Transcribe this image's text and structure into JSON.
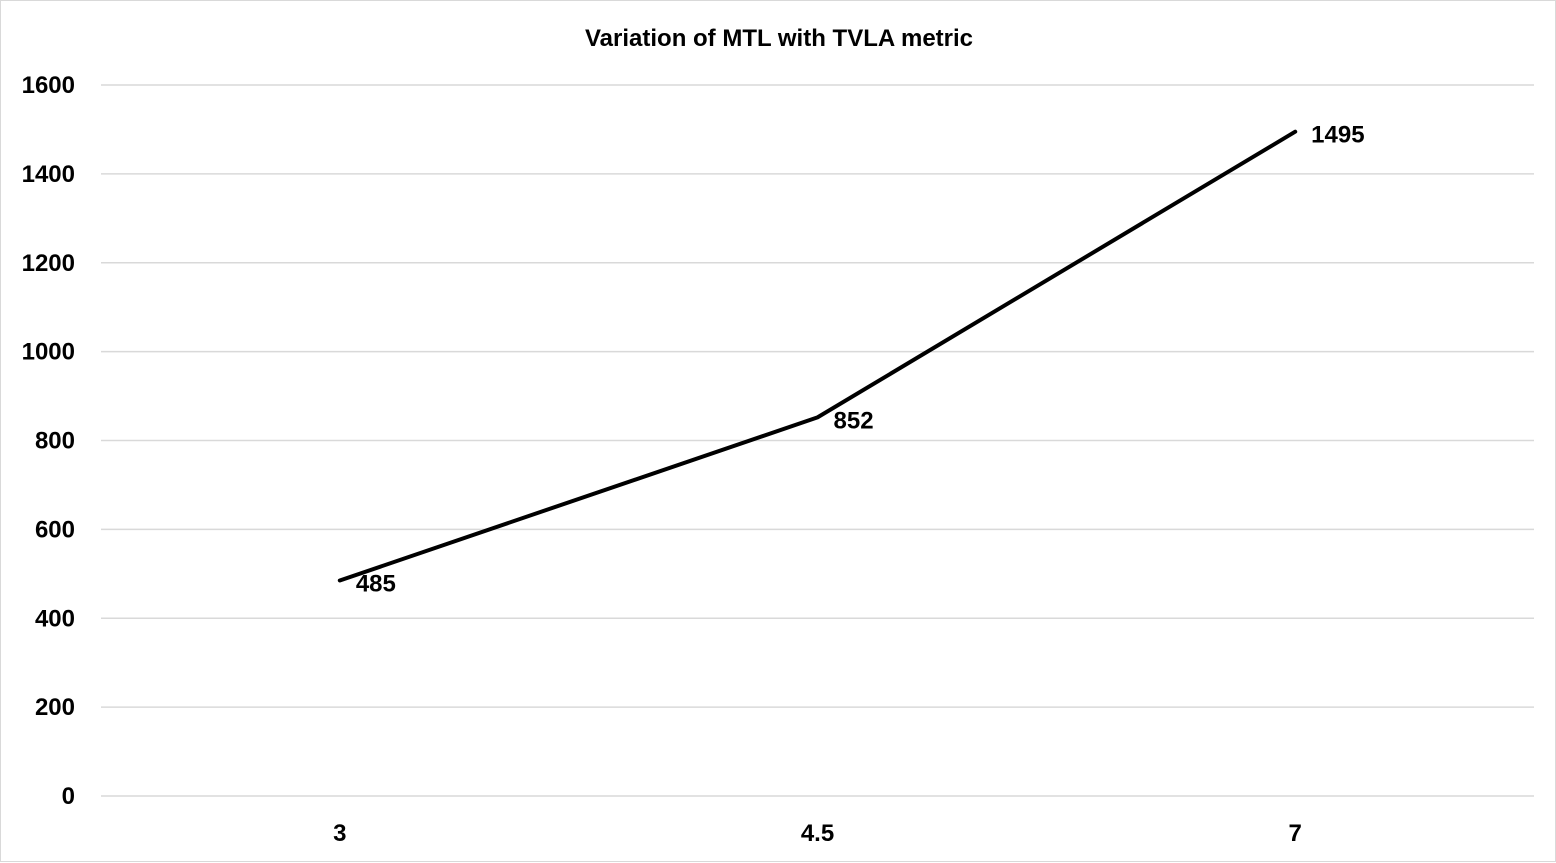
{
  "chart_data": {
    "type": "line",
    "title": "Variation of MTL with TVLA metric",
    "xlabel": "",
    "ylabel": "",
    "categories": [
      "3",
      "4.5",
      "7"
    ],
    "series": [
      {
        "values": [
          485,
          852,
          1495
        ],
        "data_labels": [
          "485",
          "852",
          "1495"
        ]
      }
    ],
    "ylim": [
      0,
      1600
    ],
    "yticks": [
      0,
      200,
      400,
      600,
      800,
      1000,
      1200,
      1400,
      1600
    ],
    "ytick_labels": [
      "0",
      "200",
      "400",
      "600",
      "800",
      "1000",
      "1200",
      "1400",
      "1600"
    ],
    "grid": true,
    "legend": "none",
    "line_color": "#000000",
    "grid_color": "#d9d9d9"
  }
}
